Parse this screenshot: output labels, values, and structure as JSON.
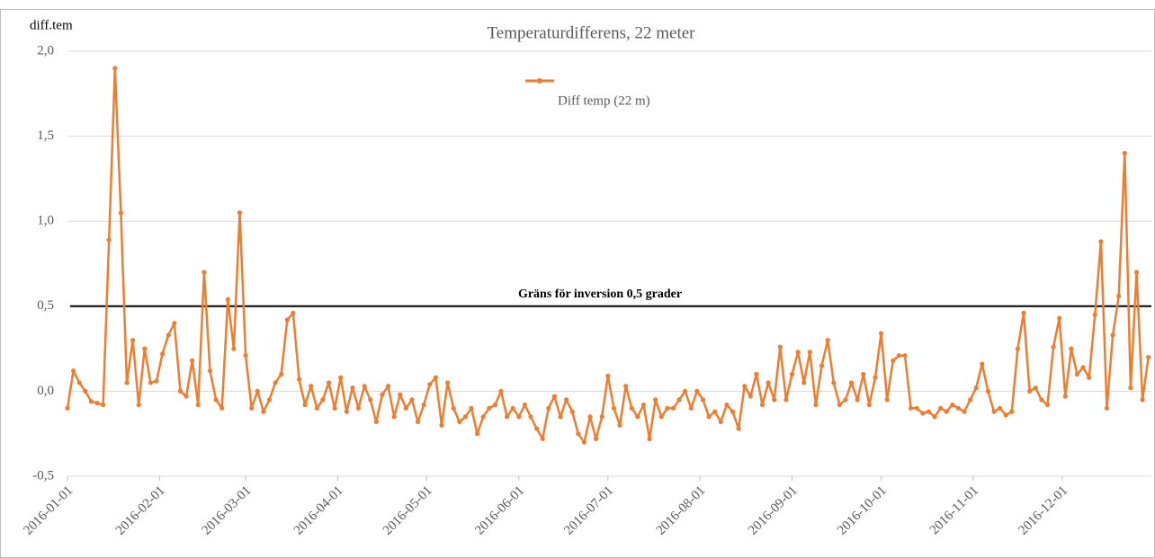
{
  "chart_data": {
    "type": "line",
    "title": "Temperaturdifferens, 22 meter",
    "y_label": "diff.tem",
    "x": [
      "2016-01-01",
      "2016-01-03",
      "2016-01-05",
      "2016-01-07",
      "2016-01-09",
      "2016-01-11",
      "2016-01-13",
      "2016-01-15",
      "2016-01-17",
      "2016-01-19",
      "2016-01-21",
      "2016-01-23",
      "2016-01-25",
      "2016-01-27",
      "2016-01-29",
      "2016-01-31",
      "2016-02-02",
      "2016-02-04",
      "2016-02-06",
      "2016-02-08",
      "2016-02-10",
      "2016-02-12",
      "2016-02-14",
      "2016-02-16",
      "2016-02-18",
      "2016-02-20",
      "2016-02-22",
      "2016-02-24",
      "2016-02-26",
      "2016-02-28",
      "2016-03-01",
      "2016-03-03",
      "2016-03-05",
      "2016-03-07",
      "2016-03-09",
      "2016-03-11",
      "2016-03-13",
      "2016-03-15",
      "2016-03-17",
      "2016-03-19",
      "2016-03-21",
      "2016-03-23",
      "2016-03-25",
      "2016-03-27",
      "2016-03-29",
      "2016-03-31",
      "2016-04-02",
      "2016-04-04",
      "2016-04-06",
      "2016-04-08",
      "2016-04-10",
      "2016-04-12",
      "2016-04-14",
      "2016-04-16",
      "2016-04-18",
      "2016-04-20",
      "2016-04-22",
      "2016-04-24",
      "2016-04-26",
      "2016-04-28",
      "2016-04-30",
      "2016-05-02",
      "2016-05-04",
      "2016-05-06",
      "2016-05-08",
      "2016-05-10",
      "2016-05-12",
      "2016-05-14",
      "2016-05-16",
      "2016-05-18",
      "2016-05-20",
      "2016-05-22",
      "2016-05-24",
      "2016-05-26",
      "2016-05-28",
      "2016-05-30",
      "2016-06-01",
      "2016-06-03",
      "2016-06-05",
      "2016-06-07",
      "2016-06-09",
      "2016-06-11",
      "2016-06-13",
      "2016-06-15",
      "2016-06-17",
      "2016-06-19",
      "2016-06-21",
      "2016-06-23",
      "2016-06-25",
      "2016-06-27",
      "2016-06-29",
      "2016-07-01",
      "2016-07-03",
      "2016-07-05",
      "2016-07-07",
      "2016-07-09",
      "2016-07-11",
      "2016-07-13",
      "2016-07-15",
      "2016-07-17",
      "2016-07-19",
      "2016-07-21",
      "2016-07-23",
      "2016-07-25",
      "2016-07-27",
      "2016-07-29",
      "2016-07-31",
      "2016-08-02",
      "2016-08-04",
      "2016-08-06",
      "2016-08-08",
      "2016-08-10",
      "2016-08-12",
      "2016-08-14",
      "2016-08-16",
      "2016-08-18",
      "2016-08-20",
      "2016-08-22",
      "2016-08-24",
      "2016-08-26",
      "2016-08-28",
      "2016-08-30",
      "2016-09-01",
      "2016-09-03",
      "2016-09-05",
      "2016-09-07",
      "2016-09-09",
      "2016-09-11",
      "2016-09-13",
      "2016-09-15",
      "2016-09-17",
      "2016-09-19",
      "2016-09-21",
      "2016-09-23",
      "2016-09-25",
      "2016-09-27",
      "2016-09-29",
      "2016-10-01",
      "2016-10-03",
      "2016-10-05",
      "2016-10-07",
      "2016-10-09",
      "2016-10-11",
      "2016-10-13",
      "2016-10-15",
      "2016-10-17",
      "2016-10-19",
      "2016-10-21",
      "2016-10-23",
      "2016-10-25",
      "2016-10-27",
      "2016-10-29",
      "2016-10-31",
      "2016-11-02",
      "2016-11-04",
      "2016-11-06",
      "2016-11-08",
      "2016-11-10",
      "2016-11-12",
      "2016-11-14",
      "2016-11-16",
      "2016-11-18",
      "2016-11-20",
      "2016-11-22",
      "2016-11-24",
      "2016-11-26",
      "2016-11-28",
      "2016-11-30",
      "2016-12-02",
      "2016-12-04",
      "2016-12-06",
      "2016-12-08",
      "2016-12-10",
      "2016-12-12",
      "2016-12-14",
      "2016-12-16",
      "2016-12-18",
      "2016-12-20",
      "2016-12-22",
      "2016-12-24",
      "2016-12-26",
      "2016-12-28",
      "2016-12-30"
    ],
    "series": [
      {
        "name": "Diff temp (22 m)",
        "color": "#ed7d31",
        "values": [
          -0.1,
          0.12,
          0.05,
          0.0,
          -0.06,
          -0.07,
          -0.08,
          0.89,
          1.9,
          1.05,
          0.05,
          0.3,
          -0.08,
          0.25,
          0.05,
          0.06,
          0.22,
          0.33,
          0.4,
          0.0,
          -0.03,
          0.18,
          -0.08,
          0.7,
          0.12,
          -0.05,
          -0.1,
          0.54,
          0.25,
          1.05,
          0.21,
          -0.1,
          0.0,
          -0.12,
          -0.05,
          0.05,
          0.1,
          0.42,
          0.46,
          0.07,
          -0.08,
          0.03,
          -0.1,
          -0.05,
          0.05,
          -0.1,
          0.08,
          -0.12,
          0.02,
          -0.1,
          0.03,
          -0.05,
          -0.18,
          -0.02,
          0.03,
          -0.15,
          -0.02,
          -0.1,
          -0.05,
          -0.18,
          -0.08,
          0.04,
          0.08,
          -0.2,
          0.05,
          -0.1,
          -0.18,
          -0.15,
          -0.1,
          -0.25,
          -0.15,
          -0.1,
          -0.08,
          0.0,
          -0.15,
          -0.1,
          -0.15,
          -0.08,
          -0.15,
          -0.22,
          -0.28,
          -0.1,
          -0.03,
          -0.15,
          -0.05,
          -0.12,
          -0.25,
          -0.3,
          -0.15,
          -0.28,
          -0.15,
          0.09,
          -0.1,
          -0.2,
          0.03,
          -0.1,
          -0.15,
          -0.08,
          -0.28,
          -0.05,
          -0.15,
          -0.1,
          -0.1,
          -0.05,
          0.0,
          -0.1,
          0.0,
          -0.05,
          -0.15,
          -0.12,
          -0.18,
          -0.08,
          -0.12,
          -0.22,
          0.03,
          -0.03,
          0.1,
          -0.08,
          0.05,
          -0.05,
          0.26,
          -0.05,
          0.1,
          0.23,
          0.05,
          0.23,
          -0.08,
          0.15,
          0.3,
          0.05,
          -0.08,
          -0.05,
          0.05,
          -0.05,
          0.1,
          -0.08,
          0.08,
          0.34,
          -0.05,
          0.18,
          0.21,
          0.21,
          -0.1,
          -0.1,
          -0.13,
          -0.12,
          -0.15,
          -0.1,
          -0.12,
          -0.08,
          -0.1,
          -0.12,
          -0.05,
          0.02,
          0.16,
          0.0,
          -0.12,
          -0.1,
          -0.14,
          -0.12,
          0.25,
          0.46,
          0.0,
          0.02,
          -0.05,
          -0.08,
          0.26,
          0.43,
          -0.03,
          0.25,
          0.1,
          0.14,
          0.08,
          0.45,
          0.88,
          -0.1,
          0.33,
          0.56,
          1.4,
          0.02,
          0.7,
          -0.05,
          0.2
        ]
      }
    ],
    "xlim": [
      "2016-01-01",
      "2016-12-31"
    ],
    "xticks": [
      "2016-01-01",
      "2016-02-01",
      "2016-03-01",
      "2016-04-01",
      "2016-05-01",
      "2016-06-01",
      "2016-07-01",
      "2016-08-01",
      "2016-09-01",
      "2016-10-01",
      "2016-11-01",
      "2016-12-01"
    ],
    "ylim": [
      -0.5,
      2.0
    ],
    "yticks": [
      {
        "value": -0.5,
        "label": "-0,5"
      },
      {
        "value": 0,
        "label": "0,0"
      },
      {
        "value": 0.5,
        "label": "0,5"
      },
      {
        "value": 1.0,
        "label": "1,0"
      },
      {
        "value": 1.5,
        "label": "1,5"
      },
      {
        "value": 2.0,
        "label": "2,0"
      }
    ],
    "grid": true,
    "legend": "top",
    "reference_line": {
      "value": 0.5,
      "label": "Gräns för inversion 0,5 grader",
      "color": "#000000"
    }
  }
}
